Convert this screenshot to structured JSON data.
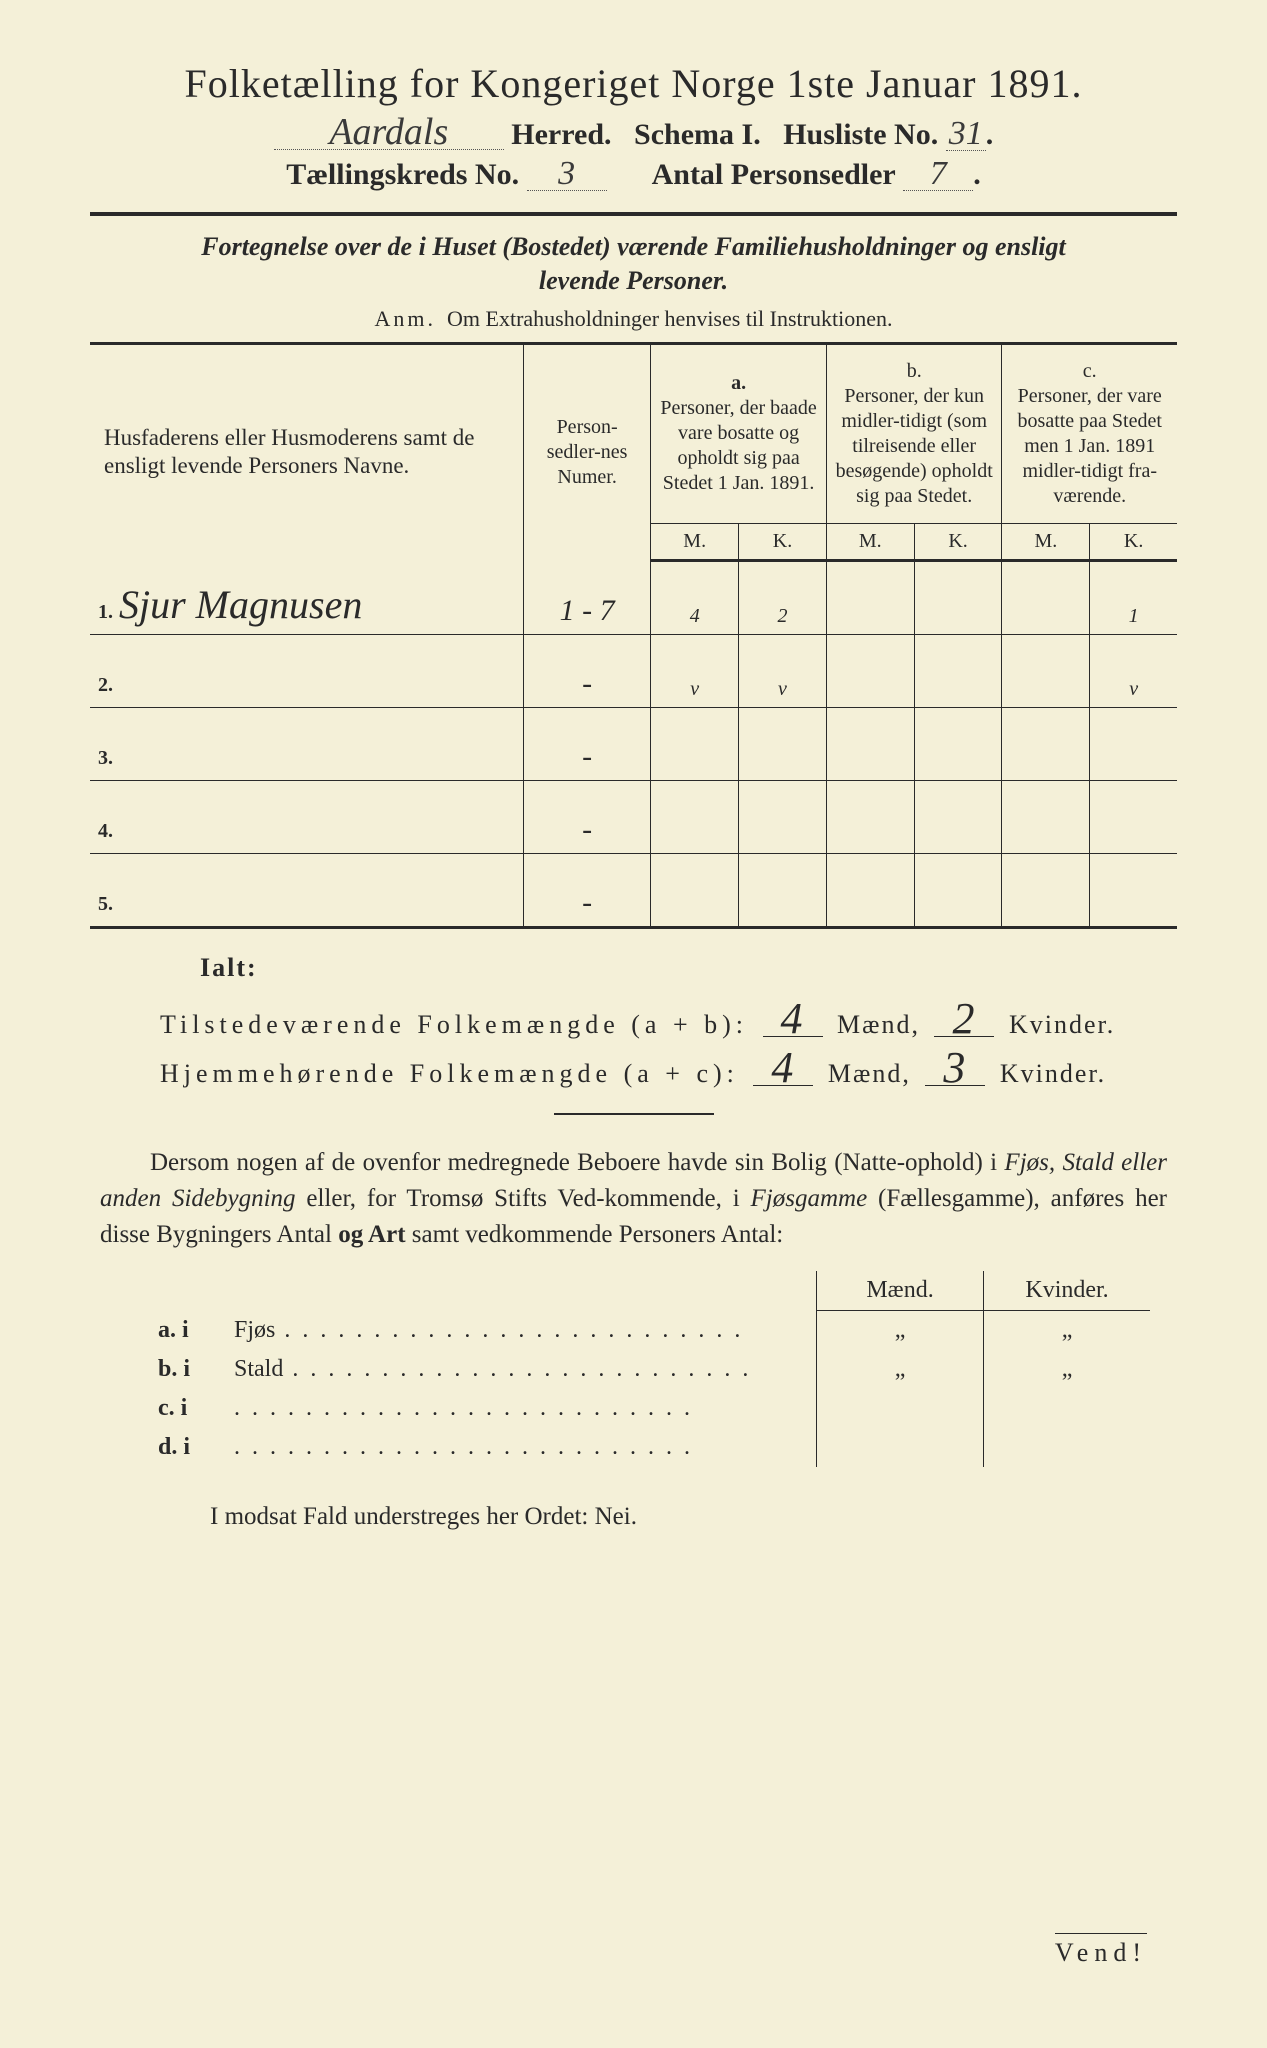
{
  "header": {
    "title": "Folketælling for Kongeriget Norge 1ste Januar 1891.",
    "herred_hw": "Aardals",
    "herred_label": "Herred.",
    "schema_label": "Schema I.",
    "husliste_label": "Husliste No.",
    "husliste_hw": "31",
    "kreds_label": "Tællingskreds No.",
    "kreds_hw": "3",
    "antal_label": "Antal Personsedler",
    "antal_hw": "7"
  },
  "subtitle": {
    "line1a": "Fortegnelse over de i Huset (Bostedet) værende Familiehusholdninger og ensligt",
    "line1b": "levende Personer.",
    "anm_lead": "Anm.",
    "anm_rest": "Om Extrahusholdninger henvises til Instruktionen."
  },
  "table": {
    "col_name": "Husfaderens eller Husmoderens samt de ensligt levende Personers Navne.",
    "col_num": "Person-sedler-nes Numer.",
    "col_a_head": "a.",
    "col_a": "Personer, der baade vare bosatte og opholdt sig paa Stedet 1 Jan. 1891.",
    "col_b_head": "b.",
    "col_b": "Personer, der kun midler-tidigt (som tilreisende eller besøgende) opholdt sig paa Stedet.",
    "col_c_head": "c.",
    "col_c": "Personer, der vare bosatte paa Stedet men 1 Jan. 1891 midler-tidigt fra-værende.",
    "mk_m": "M.",
    "mk_k": "K.",
    "rows": [
      {
        "n": "1.",
        "name": "Sjur Magnusen",
        "num": "1 - 7",
        "am": "4",
        "ak": "2",
        "bm": "",
        "bk": "",
        "cm": "",
        "ck": "1"
      },
      {
        "n": "2.",
        "name": "",
        "num": "-",
        "am": "v",
        "ak": "v",
        "bm": "",
        "bk": "",
        "cm": "",
        "ck": "v"
      },
      {
        "n": "3.",
        "name": "",
        "num": "-",
        "am": "",
        "ak": "",
        "bm": "",
        "bk": "",
        "cm": "",
        "ck": ""
      },
      {
        "n": "4.",
        "name": "",
        "num": "-",
        "am": "",
        "ak": "",
        "bm": "",
        "bk": "",
        "cm": "",
        "ck": ""
      },
      {
        "n": "5.",
        "name": "",
        "num": "-",
        "am": "",
        "ak": "",
        "bm": "",
        "bk": "",
        "cm": "",
        "ck": ""
      }
    ]
  },
  "totals": {
    "ialt": "Ialt:",
    "line1_label": "Tilstedeværende Folkemængde (a + b):",
    "line1_m": "4",
    "maend": "Mænd,",
    "line1_k": "2",
    "kvinder": "Kvinder.",
    "line2_label": "Hjemmehørende Folkemængde (a + c):",
    "line2_m": "4",
    "line2_k": "3"
  },
  "paragraph": {
    "text1": "Dersom nogen af de ovenfor medregnede Beboere havde sin Bolig (Natte-ophold) i ",
    "it1": "Fjøs, Stald eller anden Sidebygning",
    "text2": " eller, for Tromsø Stifts Ved-kommende, i ",
    "it2": "Fjøsgamme",
    "text3": " (Fællesgamme), anføres her disse Bygningers Antal ",
    "bold1": "og Art",
    "text4": " samt vedkommende Personers Antal:"
  },
  "bldg": {
    "maend": "Mænd.",
    "kvinder": "Kvinder.",
    "rows": [
      {
        "l": "a. i",
        "name": "Fjøs",
        "m": "„",
        "k": "„"
      },
      {
        "l": "b. i",
        "name": "Stald",
        "m": "„",
        "k": "„"
      },
      {
        "l": "c. i",
        "name": "",
        "m": "",
        "k": ""
      },
      {
        "l": "d. i",
        "name": "",
        "m": "",
        "k": ""
      }
    ]
  },
  "footer": {
    "nei": "I modsat Fald understreges her Ordet: Nei.",
    "vend": "Vend!"
  },
  "colors": {
    "paper": "#f4f0d8",
    "ink": "#2a2a2a",
    "hw": "#3a3a3a"
  }
}
